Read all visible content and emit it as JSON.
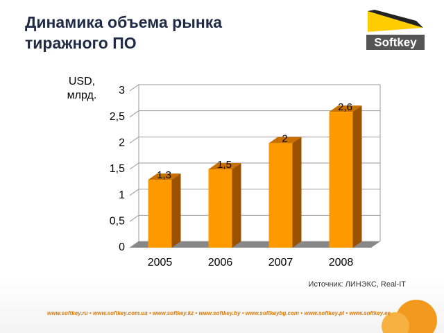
{
  "chart_data": {
    "type": "bar3d",
    "title": "Динамика объема рынка тиражного ПО",
    "y_label": "USD, млрд.",
    "categories": [
      "2005",
      "2006",
      "2007",
      "2008"
    ],
    "values": [
      1.3,
      1.5,
      2,
      2.6
    ],
    "value_labels": [
      "1,3",
      "1,5",
      "2",
      "2,6"
    ],
    "color": "#ff9900",
    "ylim": [
      0,
      3
    ],
    "yticks": [
      0,
      {
        "value": 0.5,
        "label": "0,5"
      },
      1,
      {
        "value": 1.5,
        "label": "1,5"
      },
      2,
      {
        "value": 2.5,
        "label": "2,5"
      },
      3
    ],
    "grid": true,
    "source": "Источник: ЛИНЭКС, Real-IT"
  },
  "logo": "Softkey",
  "footer": "www.softkey.ru • www.softkey.com.ua • www.softkey.kz • www.softkey.by • www.softkeybg.com • www.softkey.pl • www.softkey.ee"
}
